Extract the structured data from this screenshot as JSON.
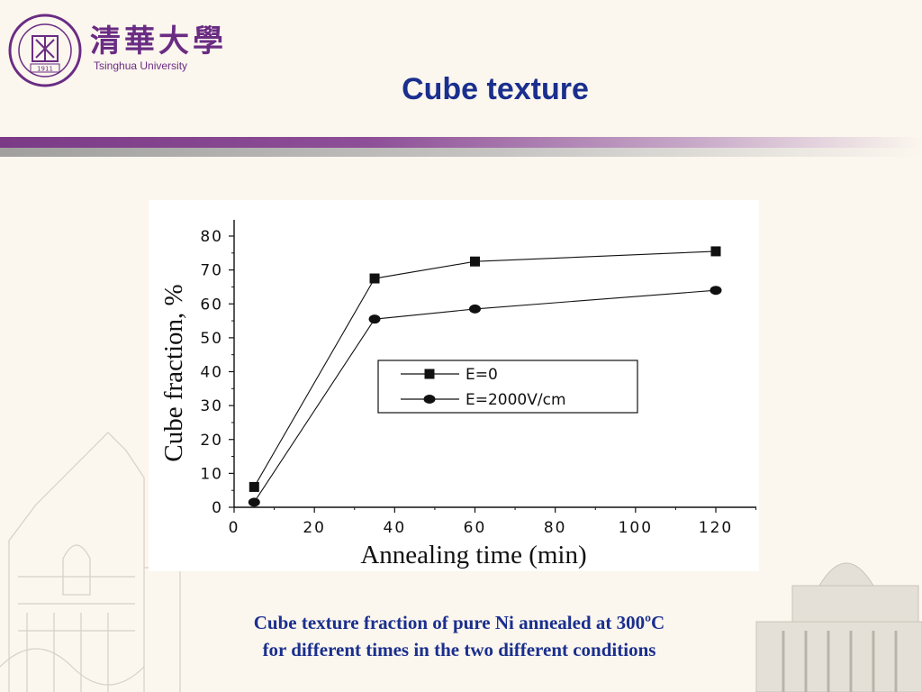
{
  "header": {
    "university_cn": "清華大學",
    "university_en": "Tsinghua University",
    "seal_text": "TSINGHUA UNIVERSITY",
    "seal_year": "1911"
  },
  "slide": {
    "title": "Cube texture",
    "caption_line1": "Cube texture fraction of pure Ni annealed at 300ºC",
    "caption_line2": "for different times in the two different conditions"
  },
  "colors": {
    "title": "#1a2f8e",
    "brand_purple": "#6a2c83",
    "background": "#fbf6ee"
  },
  "chart_data": {
    "type": "line",
    "title": "",
    "xlabel": "Annealing time (min)",
    "ylabel": "Cube fraction, %",
    "xlim": [
      0,
      120
    ],
    "ylim": [
      0,
      80
    ],
    "xticks": [
      0,
      20,
      40,
      60,
      80,
      100,
      120
    ],
    "yticks": [
      0,
      10,
      20,
      30,
      40,
      50,
      60,
      70,
      80
    ],
    "grid": false,
    "legend_position": "center-right",
    "series": [
      {
        "name": "E=0",
        "marker": "square",
        "x": [
          5,
          35,
          60,
          120
        ],
        "y": [
          6,
          67.5,
          72.5,
          75.5
        ]
      },
      {
        "name": "E=2000V/cm",
        "marker": "circle",
        "x": [
          5,
          35,
          60,
          120
        ],
        "y": [
          1.5,
          55.5,
          58.5,
          64
        ]
      }
    ]
  }
}
